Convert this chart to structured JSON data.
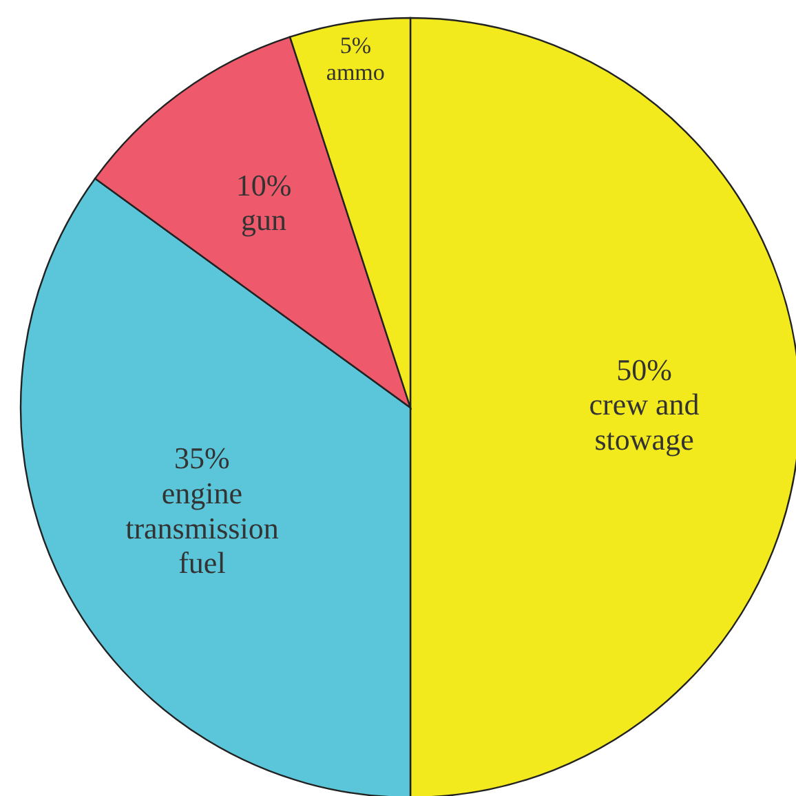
{
  "chart_data": {
    "type": "pie",
    "categories": [
      "crew and\nstowage",
      "engine\ntransmission\nfuel",
      "gun",
      "ammo"
    ],
    "values": [
      50,
      35,
      10,
      5
    ],
    "value_labels": [
      "50%",
      "35%",
      "10%",
      "5%"
    ],
    "colors": [
      "#f2ea1c",
      "#5bc6d9",
      "#ee5a6c",
      "#f2ea1c"
    ]
  }
}
